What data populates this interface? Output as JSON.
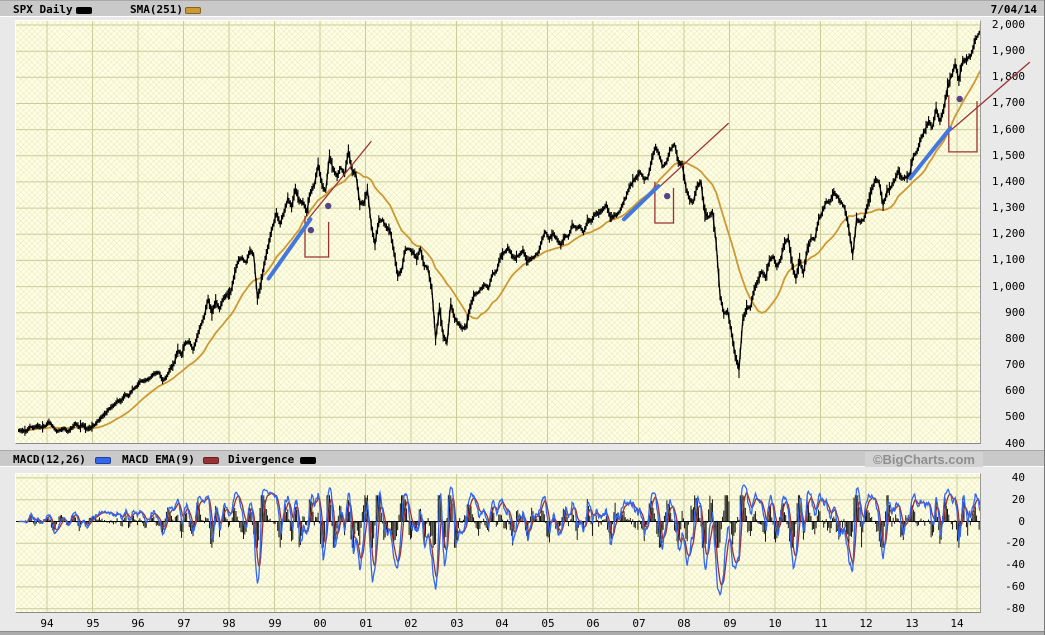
{
  "header": {
    "symbol_label": "SPX Daily",
    "sma_label": "SMA(251)",
    "date": "7/04/14"
  },
  "macd_bar": {
    "macd_label": "MACD(12,26)",
    "ema_label": "MACD EMA(9)",
    "divergence_label": "Divergence",
    "copyright": "©BigCharts.com"
  },
  "colors": {
    "page_bg": "#E9E9E9",
    "bar_bg": "#C9C9C9",
    "plot_bg": "#FFFFE6",
    "grid": "#CCCC99",
    "price_line": "#000000",
    "sma_line": "#CC9933",
    "macd_line": "#3366EE",
    "macd_signal": "#993333",
    "divergence": "#000000",
    "trendline_blue": "#4477DD",
    "annotation_maroon": "#993333",
    "dot_purple": "#554488"
  },
  "chart_data": [
    {
      "type": "line",
      "title": "SPX Daily with SMA(251)",
      "x_start": 1993.375,
      "x_step_months": 1,
      "x_ticks": [
        "94",
        "95",
        "96",
        "97",
        "98",
        "99",
        "00",
        "01",
        "02",
        "03",
        "04",
        "05",
        "06",
        "07",
        "08",
        "09",
        "10",
        "11",
        "12",
        "13",
        "14"
      ],
      "ylim": [
        400,
        2000
      ],
      "y_tick_labels": [
        "2,000",
        "1,900",
        "1,800",
        "1,700",
        "1,600",
        "1,500",
        "1,400",
        "1,300",
        "1,200",
        "1,100",
        "1,000",
        "900",
        "800",
        "700",
        "600",
        "500",
        "400"
      ],
      "y_tick_values": [
        2000,
        1900,
        1800,
        1700,
        1600,
        1500,
        1400,
        1300,
        1200,
        1100,
        1000,
        900,
        800,
        700,
        600,
        500,
        400
      ],
      "series": [
        {
          "name": "SPX",
          "color": "#000000",
          "sampling": "monthly approximations of daily bars",
          "values": [
            450,
            448,
            447,
            464,
            459,
            468,
            462,
            466,
            482,
            467,
            446,
            451,
            457,
            444,
            458,
            475,
            463,
            472,
            454,
            459,
            470,
            487,
            501,
            515,
            533,
            545,
            562,
            562,
            584,
            582,
            605,
            616,
            636,
            640,
            646,
            654,
            669,
            671,
            640,
            652,
            687,
            705,
            757,
            741,
            786,
            791,
            757,
            801,
            848,
            885,
            954,
            899,
            947,
            915,
            955,
            970,
            980,
            1049,
            1102,
            1112,
            1091,
            1134,
            1121,
            957,
            1017,
            1099,
            1164,
            1229,
            1280,
            1238,
            1286,
            1335,
            1302,
            1373,
            1329,
            1320,
            1283,
            1363,
            1389,
            1469,
            1394,
            1366,
            1499,
            1452,
            1421,
            1455,
            1431,
            1518,
            1437,
            1429,
            1315,
            1320,
            1366,
            1240,
            1160,
            1249,
            1256,
            1224,
            1211,
            1134,
            1041,
            1060,
            1139,
            1148,
            1130,
            1107,
            1147,
            1077,
            1067,
            990,
            800,
            916,
            815,
            785,
            936,
            880,
            856,
            841,
            848,
            917,
            964,
            975,
            990,
            1008,
            996,
            1051,
            1058,
            1112,
            1131,
            1145,
            1126,
            1107,
            1121,
            1141,
            1102,
            1104,
            1114,
            1130,
            1174,
            1212,
            1181,
            1204,
            1181,
            1157,
            1192,
            1191,
            1234,
            1220,
            1229,
            1207,
            1249,
            1248,
            1280,
            1281,
            1295,
            1311,
            1270,
            1270,
            1277,
            1304,
            1336,
            1378,
            1401,
            1418,
            1438,
            1407,
            1421,
            1482,
            1531,
            1503,
            1455,
            1474,
            1527,
            1549,
            1481,
            1468,
            1379,
            1331,
            1323,
            1386,
            1400,
            1280,
            1267,
            1283,
            1166,
            969,
            896,
            903,
            826,
            735,
            683,
            873,
            919,
            919,
            987,
            1021,
            1057,
            1036,
            1096,
            1115,
            1074,
            1104,
            1169,
            1187,
            1089,
            1031,
            1102,
            1049,
            1141,
            1183,
            1181,
            1258,
            1286,
            1327,
            1326,
            1364,
            1345,
            1321,
            1292,
            1219,
            1120,
            1253,
            1247,
            1258,
            1312,
            1366,
            1408,
            1398,
            1310,
            1362,
            1379,
            1407,
            1441,
            1412,
            1416,
            1426,
            1498,
            1515,
            1569,
            1598,
            1631,
            1606,
            1686,
            1633,
            1682,
            1757,
            1806,
            1848,
            1783,
            1859,
            1872,
            1884,
            1924,
            1960,
            1985
          ]
        },
        {
          "name": "SMA(251)",
          "color": "#CC9933",
          "derived": "trailing 12-month mean of SPX values"
        }
      ],
      "annotations": {
        "trendlines_blue": [
          {
            "x1": 1998.87,
            "v1": 1031,
            "x2": 1999.79,
            "v2": 1257
          },
          {
            "x1": 2006.68,
            "v1": 1257,
            "x2": 2007.44,
            "v2": 1384
          },
          {
            "x1": 2012.97,
            "v1": 1414,
            "x2": 2013.85,
            "v2": 1605
          }
        ],
        "extension_lines_maroon": [
          {
            "x1": 1999.72,
            "v1": 1254,
            "x2": 2001.13,
            "v2": 1556
          },
          {
            "x1": 2007.38,
            "v1": 1368,
            "x2": 2008.98,
            "v2": 1625
          },
          {
            "x1": 2013.74,
            "v1": 1579,
            "x2": 2015.6,
            "v2": 1858
          }
        ],
        "open_top_boxes_maroon": [
          {
            "x1": 1999.67,
            "x2": 2000.19,
            "v_bottom": 1113,
            "v_top": 1270
          },
          {
            "x1": 2007.36,
            "x2": 2007.77,
            "v_bottom": 1243,
            "v_top": 1400
          },
          {
            "x1": 2013.82,
            "x2": 2014.44,
            "v_bottom": 1515,
            "v_top": 1732
          }
        ],
        "dots_purple": [
          {
            "x": 1999.8,
            "v": 1216
          },
          {
            "x": 2000.18,
            "v": 1308
          },
          {
            "x": 2007.63,
            "v": 1346
          },
          {
            "x": 2014.06,
            "v": 1717
          }
        ]
      }
    },
    {
      "type": "line",
      "title": "MACD(12,26) with MACD EMA(9) and Divergence",
      "ylim": [
        -85,
        45
      ],
      "y_tick_labels": [
        "40",
        "20",
        "0",
        "-20",
        "-40",
        "-60",
        "-80"
      ],
      "y_tick_values": [
        40,
        20,
        0,
        -20,
        -40,
        -60,
        -80
      ],
      "series": [
        {
          "name": "MACD(12,26)",
          "color": "#3366EE"
        },
        {
          "name": "MACD EMA(9)",
          "color": "#993333"
        },
        {
          "name": "Divergence",
          "color": "#000000",
          "style": "histogram"
        }
      ],
      "derived_from": "SPX price series (momentum of ~1-month changes)",
      "approx_extremes": {
        "deepest_trough": {
          "x": 2008.85,
          "value": -78
        },
        "other_troughs": [
          {
            "x": 1998.7,
            "value": -45
          },
          {
            "x": 2002.6,
            "value": -57
          },
          {
            "x": 2010.5,
            "value": -45
          },
          {
            "x": 2011.7,
            "value": -48
          }
        ],
        "typical_peak": 25,
        "max_peak": 35
      }
    }
  ]
}
